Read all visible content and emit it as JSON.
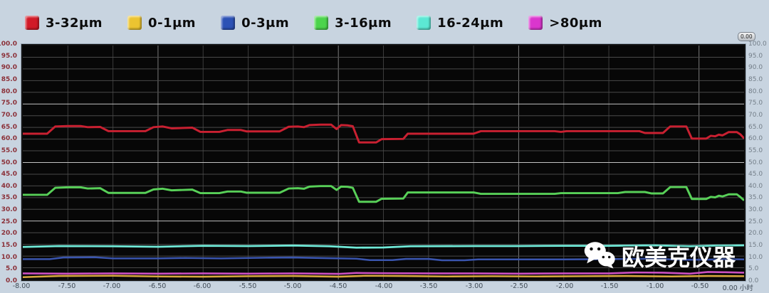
{
  "legend": {
    "items": [
      {
        "label": "3-32μm",
        "color": "#d11a28"
      },
      {
        "label": "0-1μm",
        "color": "#ecc431"
      },
      {
        "label": "0-3μm",
        "color": "#2c51b5"
      },
      {
        "label": "3-16μm",
        "color": "#4cd44c"
      },
      {
        "label": "16-24μm",
        "color": "#5ce8d4"
      },
      {
        "label": ">80μm",
        "color": "#da36cd"
      }
    ]
  },
  "badge": {
    "text": "0.00"
  },
  "watermark": {
    "text": "欧美克仪器",
    "icon": "wechat-icon"
  },
  "chart_data": {
    "type": "line",
    "title": "",
    "xlabel": "小时",
    "ylabel": "%",
    "xlim": [
      -8,
      0
    ],
    "ylim": [
      0,
      100
    ],
    "grid": true,
    "background": "#070707",
    "x_ticks": [
      -8.0,
      -7.5,
      -7.0,
      -6.5,
      -6.0,
      -5.5,
      -5.0,
      -4.5,
      -4.0,
      -3.5,
      -3.0,
      -2.5,
      -2.0,
      -1.5,
      -1.0,
      -0.5,
      0.0
    ],
    "x_tick_labels": [
      "-8.00",
      "-7.50",
      "-7.00",
      "-6.50",
      "-6.00",
      "-5.50",
      "-5.00",
      "-4.50",
      "-4.00",
      "-3.50",
      "-3.00",
      "-2.50",
      "-2.00",
      "-1.50",
      "-1.00",
      "-0.50",
      "0.00 小时"
    ],
    "y_ticks": [
      0,
      5,
      10,
      15,
      20,
      25,
      30,
      35,
      40,
      45,
      50,
      55,
      60,
      65,
      70,
      75,
      80,
      85,
      90,
      95,
      100
    ],
    "y_unit_right": "%",
    "legend_position": "top",
    "series": [
      {
        "name": "3-32μm",
        "color": "#c92031",
        "width": 3,
        "points": [
          [
            -8,
            62.3
          ],
          [
            -7.73,
            62.3
          ],
          [
            -7.64,
            65.4
          ],
          [
            -7.5,
            65.6
          ],
          [
            -7.36,
            65.6
          ],
          [
            -7.28,
            65.1
          ],
          [
            -7.14,
            65.2
          ],
          [
            -7.05,
            63.4
          ],
          [
            -6.64,
            63.4
          ],
          [
            -6.55,
            65.1
          ],
          [
            -6.45,
            65.4
          ],
          [
            -6.35,
            64.6
          ],
          [
            -6.12,
            64.9
          ],
          [
            -6.03,
            63.1
          ],
          [
            -5.82,
            63.1
          ],
          [
            -5.73,
            63.9
          ],
          [
            -5.58,
            63.9
          ],
          [
            -5.52,
            63.3
          ],
          [
            -5.15,
            63.3
          ],
          [
            -5.05,
            65.3
          ],
          [
            -4.95,
            65.4
          ],
          [
            -4.88,
            65.1
          ],
          [
            -4.82,
            66.0
          ],
          [
            -4.7,
            66.2
          ],
          [
            -4.58,
            66.2
          ],
          [
            -4.52,
            64.3
          ],
          [
            -4.47,
            66.0
          ],
          [
            -4.4,
            65.9
          ],
          [
            -4.34,
            65.5
          ],
          [
            -4.27,
            58.6
          ],
          [
            -4.08,
            58.6
          ],
          [
            -4.02,
            60.0
          ],
          [
            -3.78,
            60.1
          ],
          [
            -3.73,
            62.3
          ],
          [
            -3.0,
            62.3
          ],
          [
            -2.92,
            63.4
          ],
          [
            -2.1,
            63.4
          ],
          [
            -2.03,
            63.1
          ],
          [
            -1.97,
            63.4
          ],
          [
            -1.16,
            63.4
          ],
          [
            -1.1,
            62.6
          ],
          [
            -0.9,
            62.6
          ],
          [
            -0.82,
            65.4
          ],
          [
            -0.64,
            65.4
          ],
          [
            -0.58,
            60.2
          ],
          [
            -0.42,
            60.2
          ],
          [
            -0.37,
            61.4
          ],
          [
            -0.32,
            61.2
          ],
          [
            -0.28,
            61.9
          ],
          [
            -0.24,
            61.6
          ],
          [
            -0.17,
            63.0
          ],
          [
            -0.08,
            63.0
          ],
          [
            -0.04,
            62.0
          ],
          [
            0,
            60.3
          ]
        ]
      },
      {
        "name": "0-1μm",
        "color": "#d8a83e",
        "width": 2.6,
        "points": [
          [
            -8,
            1.0
          ],
          [
            -7.6,
            1.5
          ],
          [
            -7.0,
            1.6
          ],
          [
            -6.5,
            1.3
          ],
          [
            -6.0,
            1.2
          ],
          [
            -5.5,
            1.4
          ],
          [
            -5.0,
            1.5
          ],
          [
            -4.5,
            1.2
          ],
          [
            -4.2,
            1.6
          ],
          [
            -3.8,
            1.5
          ],
          [
            -3.3,
            1.3
          ],
          [
            -2.8,
            1.4
          ],
          [
            -2.3,
            1.3
          ],
          [
            -1.8,
            1.4
          ],
          [
            -1.3,
            1.5
          ],
          [
            -0.8,
            1.3
          ],
          [
            -0.4,
            1.5
          ],
          [
            0,
            1.4
          ]
        ]
      },
      {
        "name": "0-3μm",
        "color": "#3a55ae",
        "width": 2.6,
        "points": [
          [
            -8,
            8.7
          ],
          [
            -7.7,
            8.7
          ],
          [
            -7.55,
            9.4
          ],
          [
            -7.2,
            9.5
          ],
          [
            -7.0,
            9.0
          ],
          [
            -6.5,
            9.0
          ],
          [
            -6.2,
            9.2
          ],
          [
            -5.8,
            9.0
          ],
          [
            -5.3,
            9.3
          ],
          [
            -5.0,
            9.4
          ],
          [
            -4.6,
            9.1
          ],
          [
            -4.3,
            8.9
          ],
          [
            -4.15,
            8.3
          ],
          [
            -3.9,
            8.3
          ],
          [
            -3.75,
            8.8
          ],
          [
            -3.5,
            8.8
          ],
          [
            -3.35,
            8.2
          ],
          [
            -3.1,
            8.2
          ],
          [
            -2.95,
            8.6
          ],
          [
            -2.0,
            8.6
          ],
          [
            -1.5,
            8.7
          ],
          [
            -1.0,
            8.9
          ],
          [
            -0.7,
            8.4
          ],
          [
            -0.4,
            8.5
          ],
          [
            -0.2,
            8.7
          ],
          [
            0,
            8.6
          ]
        ]
      },
      {
        "name": "3-16μm",
        "color": "#58d058",
        "width": 3,
        "points": [
          [
            -8,
            36.2
          ],
          [
            -7.73,
            36.2
          ],
          [
            -7.64,
            39.2
          ],
          [
            -7.5,
            39.4
          ],
          [
            -7.36,
            39.4
          ],
          [
            -7.28,
            38.9
          ],
          [
            -7.14,
            39.0
          ],
          [
            -7.05,
            37.0
          ],
          [
            -6.64,
            37.0
          ],
          [
            -6.55,
            38.5
          ],
          [
            -6.45,
            38.8
          ],
          [
            -6.35,
            38.1
          ],
          [
            -6.12,
            38.4
          ],
          [
            -6.03,
            36.9
          ],
          [
            -5.82,
            36.9
          ],
          [
            -5.73,
            37.6
          ],
          [
            -5.58,
            37.6
          ],
          [
            -5.52,
            37.1
          ],
          [
            -5.15,
            37.1
          ],
          [
            -5.05,
            38.9
          ],
          [
            -4.95,
            39.0
          ],
          [
            -4.88,
            38.8
          ],
          [
            -4.82,
            39.7
          ],
          [
            -4.7,
            39.9
          ],
          [
            -4.58,
            39.9
          ],
          [
            -4.52,
            38.3
          ],
          [
            -4.47,
            39.7
          ],
          [
            -4.4,
            39.6
          ],
          [
            -4.34,
            39.2
          ],
          [
            -4.27,
            33.2
          ],
          [
            -4.08,
            33.2
          ],
          [
            -4.02,
            34.5
          ],
          [
            -3.78,
            34.6
          ],
          [
            -3.73,
            37.2
          ],
          [
            -3.0,
            37.2
          ],
          [
            -2.92,
            36.6
          ],
          [
            -2.1,
            36.6
          ],
          [
            -2.03,
            36.9
          ],
          [
            -1.4,
            36.9
          ],
          [
            -1.32,
            37.4
          ],
          [
            -1.1,
            37.4
          ],
          [
            -1.03,
            36.8
          ],
          [
            -0.9,
            36.8
          ],
          [
            -0.82,
            39.5
          ],
          [
            -0.64,
            39.5
          ],
          [
            -0.58,
            34.4
          ],
          [
            -0.42,
            34.4
          ],
          [
            -0.37,
            35.3
          ],
          [
            -0.32,
            35.1
          ],
          [
            -0.28,
            35.8
          ],
          [
            -0.24,
            35.5
          ],
          [
            -0.17,
            36.4
          ],
          [
            -0.08,
            36.4
          ],
          [
            -0.04,
            35.2
          ],
          [
            0,
            33.8
          ]
        ]
      },
      {
        "name": "16-24μm",
        "color": "#70ead8",
        "width": 2.8,
        "points": [
          [
            -8,
            13.9
          ],
          [
            -7.6,
            14.3
          ],
          [
            -7.0,
            14.2
          ],
          [
            -6.5,
            14.0
          ],
          [
            -6.0,
            14.4
          ],
          [
            -5.5,
            14.3
          ],
          [
            -5.0,
            14.5
          ],
          [
            -4.6,
            14.2
          ],
          [
            -4.3,
            13.6
          ],
          [
            -4.0,
            13.7
          ],
          [
            -3.7,
            14.2
          ],
          [
            -3.0,
            14.3
          ],
          [
            -2.5,
            14.3
          ],
          [
            -2.0,
            14.4
          ],
          [
            -1.5,
            14.4
          ],
          [
            -1.0,
            14.6
          ],
          [
            -0.6,
            14.2
          ],
          [
            -0.3,
            14.5
          ],
          [
            0,
            14.6
          ]
        ]
      },
      {
        "name": ">80μm",
        "color": "#cb4fc0",
        "width": 2.6,
        "points": [
          [
            -8,
            2.6
          ],
          [
            -7.5,
            2.5
          ],
          [
            -7.0,
            2.6
          ],
          [
            -6.5,
            2.5
          ],
          [
            -6.0,
            2.6
          ],
          [
            -5.5,
            2.5
          ],
          [
            -5.0,
            2.6
          ],
          [
            -4.5,
            2.4
          ],
          [
            -4.3,
            2.8
          ],
          [
            -4.0,
            2.7
          ],
          [
            -3.5,
            2.6
          ],
          [
            -3.0,
            2.6
          ],
          [
            -2.5,
            2.5
          ],
          [
            -2.0,
            2.6
          ],
          [
            -1.5,
            2.6
          ],
          [
            -1.2,
            3.0
          ],
          [
            -0.9,
            2.9
          ],
          [
            -0.6,
            2.5
          ],
          [
            -0.4,
            3.2
          ],
          [
            -0.2,
            3.1
          ],
          [
            0,
            2.9
          ]
        ]
      }
    ]
  }
}
